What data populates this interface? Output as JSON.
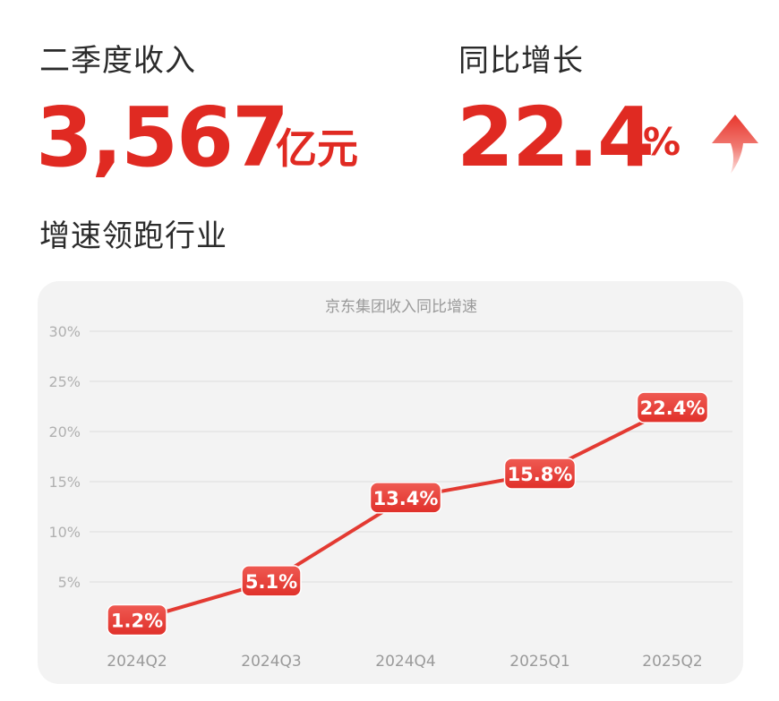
{
  "header": {
    "revenue_label": "二季度收入",
    "revenue_value": "3,567",
    "revenue_unit": "亿元",
    "growth_label": "同比增长",
    "growth_value": "22.4",
    "growth_unit": "%",
    "tagline": "增速领跑行业",
    "arrow_icon": "up-arrow-icon"
  },
  "colors": {
    "accent": "#e02a22",
    "card_bg": "#f3f3f3"
  },
  "chart_data": {
    "type": "line",
    "title": "京东集团收入同比增速",
    "categories": [
      "2024Q2",
      "2024Q3",
      "2024Q4",
      "2025Q1",
      "2025Q2"
    ],
    "series": [
      {
        "values": [
          1.2,
          5.1,
          13.4,
          15.8,
          22.4
        ]
      }
    ],
    "data_labels": [
      "1.2%",
      "5.1%",
      "13.4%",
      "15.8%",
      "22.4%"
    ],
    "y_ticks": [
      "5%",
      "10%",
      "15%",
      "20%",
      "25%",
      "30%"
    ],
    "y_tick_values": [
      5,
      10,
      15,
      20,
      25,
      30
    ],
    "ylim": [
      0,
      30
    ],
    "grid": true,
    "legend": "none"
  }
}
